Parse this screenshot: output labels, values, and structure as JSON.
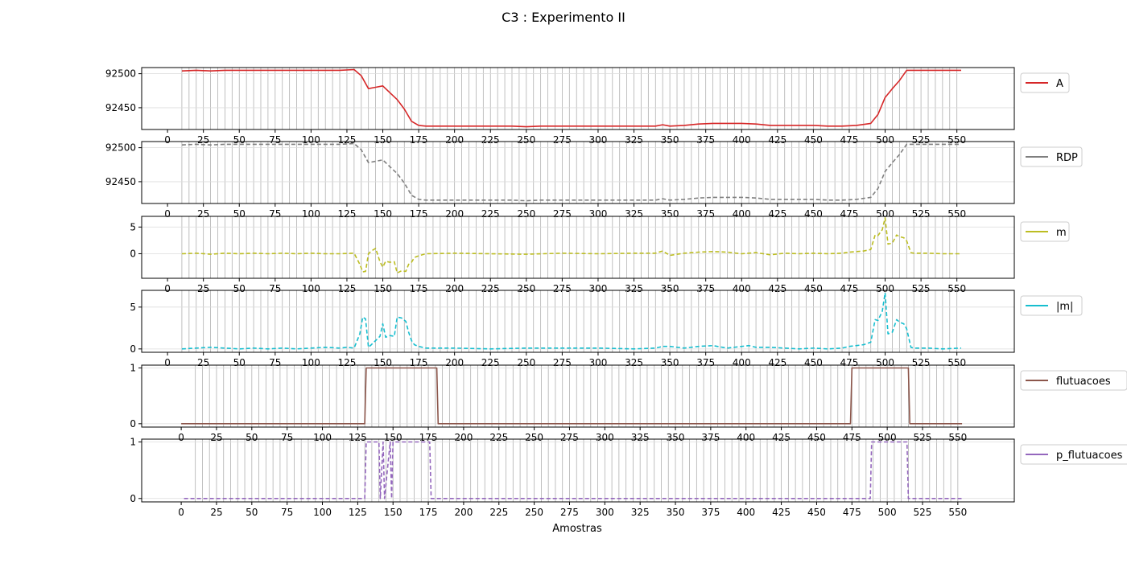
{
  "figure": {
    "title": "C3 : Experimento II",
    "xlabel": "Amostras"
  },
  "chart_data": [
    {
      "type": "line",
      "series": [
        {
          "name": "A",
          "color": "#d62728",
          "linestyle": "solid",
          "x": [
            10,
            20,
            30,
            40,
            50,
            60,
            70,
            80,
            90,
            100,
            110,
            120,
            130,
            135,
            140,
            145,
            150,
            155,
            160,
            165,
            170,
            175,
            180,
            190,
            200,
            210,
            220,
            230,
            240,
            250,
            260,
            270,
            280,
            290,
            300,
            310,
            320,
            330,
            340,
            345,
            350,
            360,
            370,
            380,
            390,
            400,
            410,
            420,
            430,
            440,
            450,
            460,
            470,
            480,
            490,
            495,
            500,
            505,
            510,
            515,
            520,
            530,
            540,
            550,
            553
          ],
          "y": [
            92504,
            92505,
            92504,
            92505,
            92505,
            92505,
            92505,
            92505,
            92505,
            92505,
            92505,
            92505,
            92506,
            92497,
            92478,
            92480,
            92482,
            92472,
            92462,
            92448,
            92430,
            92424,
            92423,
            92423,
            92423,
            92423,
            92423,
            92423,
            92423,
            92422,
            92423,
            92423,
            92423,
            92423,
            92423,
            92423,
            92423,
            92423,
            92423,
            92425,
            92423,
            92424,
            92426,
            92427,
            92427,
            92427,
            92426,
            92424,
            92424,
            92424,
            92424,
            92423,
            92423,
            92424,
            92427,
            92440,
            92465,
            92478,
            92490,
            92505,
            92505,
            92505,
            92505,
            92505,
            92505
          ]
        }
      ],
      "xlim": [
        -18,
        590
      ],
      "ylim": [
        92418,
        92509
      ],
      "yticks": [
        92450,
        92500
      ],
      "xticks": [
        0,
        25,
        50,
        75,
        100,
        125,
        150,
        175,
        200,
        225,
        250,
        275,
        300,
        325,
        350,
        375,
        400,
        425,
        450,
        475,
        500,
        525,
        550
      ],
      "xtick_labels": true,
      "grid": true
    },
    {
      "type": "line",
      "series": [
        {
          "name": "RDP",
          "color": "#7f7f7f",
          "linestyle": "dashed",
          "x": [
            10,
            20,
            30,
            40,
            50,
            60,
            70,
            80,
            90,
            100,
            110,
            120,
            130,
            135,
            140,
            145,
            150,
            155,
            160,
            165,
            170,
            175,
            180,
            190,
            200,
            210,
            220,
            230,
            240,
            250,
            260,
            270,
            280,
            290,
            300,
            310,
            320,
            330,
            340,
            345,
            350,
            360,
            370,
            380,
            390,
            400,
            410,
            420,
            430,
            440,
            450,
            460,
            470,
            480,
            490,
            495,
            500,
            505,
            510,
            515,
            520,
            530,
            540,
            550,
            553
          ],
          "y": [
            92504,
            92505,
            92504,
            92505,
            92505,
            92505,
            92505,
            92505,
            92505,
            92505,
            92505,
            92505,
            92506,
            92497,
            92478,
            92480,
            92482,
            92472,
            92462,
            92448,
            92430,
            92424,
            92423,
            92423,
            92423,
            92423,
            92423,
            92423,
            92423,
            92422,
            92423,
            92423,
            92423,
            92423,
            92423,
            92423,
            92423,
            92423,
            92423,
            92425,
            92423,
            92424,
            92426,
            92427,
            92427,
            92427,
            92426,
            92424,
            92424,
            92424,
            92424,
            92423,
            92423,
            92424,
            92427,
            92440,
            92465,
            92478,
            92490,
            92505,
            92505,
            92505,
            92505,
            92505,
            92505
          ]
        }
      ],
      "xlim": [
        -18,
        590
      ],
      "ylim": [
        92418,
        92509
      ],
      "yticks": [
        92450,
        92500
      ],
      "xticks": [
        0,
        25,
        50,
        75,
        100,
        125,
        150,
        175,
        200,
        225,
        250,
        275,
        300,
        325,
        350,
        375,
        400,
        425,
        450,
        475,
        500,
        525,
        550
      ],
      "xtick_labels": true,
      "grid": true
    },
    {
      "type": "line",
      "series": [
        {
          "name": "m",
          "color": "#bcbd22",
          "linestyle": "dashed",
          "x": [
            10,
            20,
            30,
            40,
            50,
            60,
            70,
            80,
            90,
            100,
            110,
            120,
            130,
            134,
            136,
            138,
            140,
            142,
            145,
            148,
            150,
            152,
            155,
            158,
            160,
            163,
            166,
            168,
            170,
            172,
            175,
            180,
            200,
            225,
            250,
            275,
            300,
            325,
            340,
            345,
            350,
            360,
            370,
            380,
            390,
            400,
            410,
            420,
            430,
            440,
            450,
            460,
            470,
            475,
            480,
            485,
            490,
            493,
            495,
            498,
            500,
            502,
            505,
            508,
            510,
            513,
            515,
            518,
            520,
            530,
            540,
            553
          ],
          "y": [
            0,
            0.1,
            -0.1,
            0.1,
            0,
            0.1,
            0,
            0.1,
            0,
            0.1,
            0,
            0,
            0.1,
            -2,
            -3.4,
            -3.3,
            0,
            0.5,
            1,
            -1.5,
            -2.5,
            -1.4,
            -1.6,
            -1.5,
            -3.6,
            -3.2,
            -3.3,
            -2,
            -1.6,
            -0.7,
            -0.4,
            0,
            0.1,
            0,
            -0.1,
            0.1,
            0,
            0.1,
            0.1,
            0.5,
            -0.3,
            0.1,
            0.3,
            0.4,
            0.3,
            0,
            0.2,
            -0.2,
            0.1,
            0,
            0.1,
            0,
            0.1,
            0.3,
            0.4,
            0.5,
            0.8,
            3.5,
            3.4,
            4.5,
            6.7,
            1.8,
            2,
            3.5,
            3.2,
            3,
            2.4,
            0.2,
            0.1,
            0.1,
            0,
            0
          ]
        }
      ],
      "xlim": [
        -18,
        590
      ],
      "ylim": [
        -4.6,
        7
      ],
      "yticks": [
        0,
        5
      ],
      "xticks": [
        0,
        25,
        50,
        75,
        100,
        125,
        150,
        175,
        200,
        225,
        250,
        275,
        300,
        325,
        350,
        375,
        400,
        425,
        450,
        475,
        500,
        525,
        550
      ],
      "xtick_labels": true,
      "grid": true
    },
    {
      "type": "line",
      "series": [
        {
          "name": "|m|",
          "color": "#17becf",
          "linestyle": "dashed",
          "x": [
            10,
            20,
            30,
            40,
            50,
            60,
            70,
            80,
            90,
            100,
            110,
            120,
            125,
            130,
            134,
            136,
            138,
            140,
            142,
            145,
            148,
            150,
            152,
            155,
            158,
            160,
            163,
            166,
            168,
            170,
            172,
            175,
            180,
            200,
            225,
            250,
            275,
            300,
            325,
            340,
            345,
            350,
            360,
            370,
            380,
            390,
            400,
            405,
            410,
            420,
            430,
            440,
            450,
            460,
            470,
            475,
            480,
            485,
            490,
            493,
            495,
            498,
            500,
            502,
            505,
            508,
            510,
            513,
            515,
            518,
            520,
            530,
            540,
            553
          ],
          "y": [
            0,
            0.1,
            0.2,
            0.1,
            0,
            0.1,
            0,
            0.1,
            0,
            0.1,
            0.2,
            0.1,
            0.2,
            0.1,
            1.8,
            3.8,
            3.6,
            0.2,
            0.5,
            1,
            1.5,
            3,
            1.4,
            1.6,
            1.5,
            3.8,
            3.7,
            3.3,
            2,
            1,
            0.5,
            0.3,
            0.1,
            0.1,
            0,
            0.1,
            0.1,
            0.1,
            0,
            0.1,
            0.3,
            0.3,
            0.1,
            0.3,
            0.4,
            0.1,
            0.3,
            0.4,
            0.2,
            0.2,
            0.1,
            0,
            0.1,
            0,
            0.1,
            0.3,
            0.4,
            0.5,
            0.8,
            3.5,
            3.4,
            4.5,
            6.7,
            1.8,
            2,
            3.5,
            3.2,
            3,
            2.4,
            0.2,
            0.1,
            0.1,
            0,
            0.1
          ]
        }
      ],
      "xlim": [
        -18,
        590
      ],
      "ylim": [
        -0.4,
        7
      ],
      "yticks": [
        0,
        5
      ],
      "xticks": [
        0,
        25,
        50,
        75,
        100,
        125,
        150,
        175,
        200,
        225,
        250,
        275,
        300,
        325,
        350,
        375,
        400,
        425,
        450,
        475,
        500,
        525,
        550
      ],
      "xtick_labels": true,
      "grid": true
    },
    {
      "type": "line",
      "series": [
        {
          "name": "flutuacoes",
          "color": "#8c564b",
          "linestyle": "solid",
          "x": [
            0,
            130,
            131,
            181,
            182,
            474,
            475,
            515,
            516,
            553
          ],
          "y": [
            0,
            0,
            1,
            1,
            0,
            0,
            1,
            1,
            0,
            0
          ]
        }
      ],
      "xlim": [
        -28,
        590
      ],
      "ylim": [
        -0.06,
        1.05
      ],
      "yticks": [
        0,
        1
      ],
      "xticks": [
        0,
        25,
        50,
        75,
        100,
        125,
        150,
        175,
        200,
        225,
        250,
        275,
        300,
        325,
        350,
        375,
        400,
        425,
        450,
        475,
        500,
        525,
        550
      ],
      "xtick_labels": true,
      "grid": true
    },
    {
      "type": "line",
      "series": [
        {
          "name": "p_flutuacoes",
          "color": "#9467bd",
          "linestyle": "dashed",
          "x": [
            2,
            130,
            131,
            140,
            141,
            143,
            144,
            148,
            149,
            150,
            151,
            176,
            177,
            488,
            489,
            514,
            515,
            553
          ],
          "y": [
            0,
            0,
            1,
            1,
            0,
            1,
            0,
            1,
            0,
            1,
            1,
            1,
            0,
            0,
            1,
            1,
            0,
            0
          ]
        }
      ],
      "xlim": [
        -28,
        590
      ],
      "ylim": [
        -0.06,
        1.05
      ],
      "yticks": [
        0,
        1
      ],
      "xticks": [
        0,
        25,
        50,
        75,
        100,
        125,
        150,
        175,
        200,
        225,
        250,
        275,
        300,
        325,
        350,
        375,
        400,
        425,
        450,
        475,
        500,
        525,
        550
      ],
      "xtick_labels": true,
      "grid": true
    }
  ]
}
